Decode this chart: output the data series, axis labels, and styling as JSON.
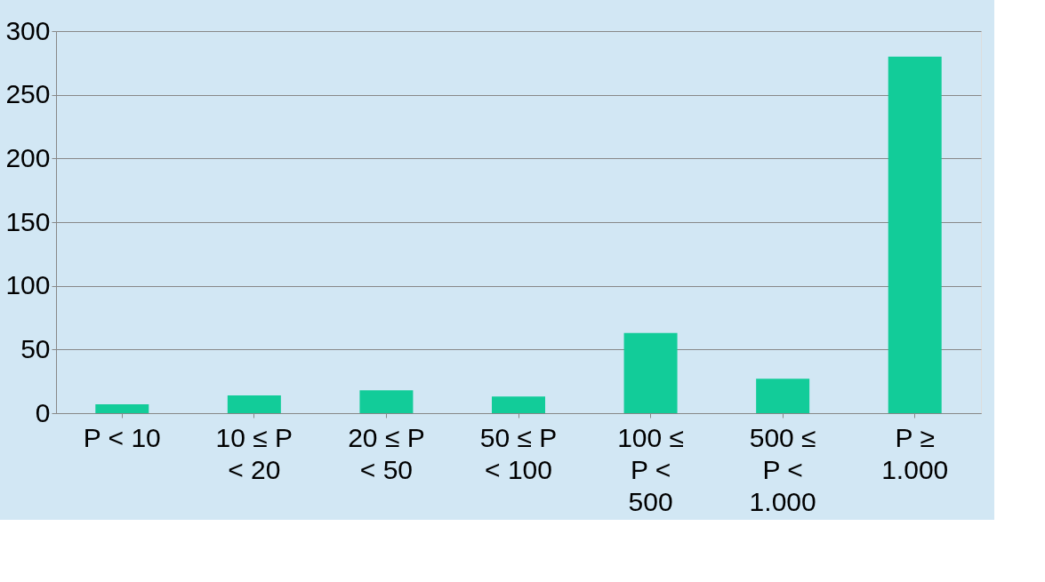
{
  "chart_data": {
    "type": "bar",
    "categories": [
      "P < 10",
      "10 ≤ P < 20",
      "20 ≤ P < 50",
      "50 ≤ P < 100",
      "100 ≤ P < 500",
      "500 ≤ P < 1.000",
      "P ≥ 1.000"
    ],
    "values": [
      7,
      14,
      18,
      13,
      63,
      27,
      280
    ],
    "color": "#12cc99",
    "ylim": [
      0,
      300
    ],
    "yticks": [
      0,
      50,
      100,
      150,
      200,
      250,
      300
    ],
    "grid": "y"
  }
}
